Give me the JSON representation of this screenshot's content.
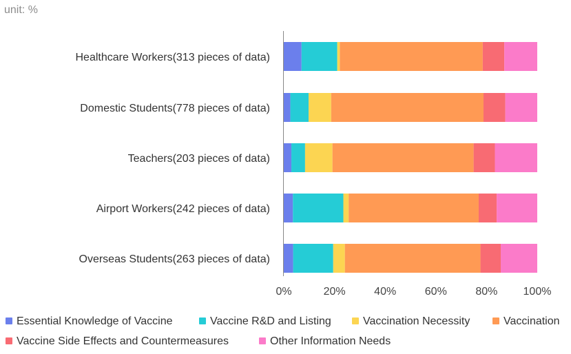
{
  "chart_data": {
    "type": "bar",
    "orientation": "horizontal",
    "stacked": true,
    "unit_label": "unit: %",
    "categories": [
      "Healthcare Workers(313 pieces of data)",
      "Domestic Students(778 pieces of data)",
      "Teachers(203 pieces of data)",
      "Airport Workers(242 pieces of data)",
      "Overseas Students(263 pieces of data)"
    ],
    "series": [
      {
        "name": "Essential Knowledge of Vaccine",
        "color": "#6b7fec",
        "values": [
          7.0,
          2.6,
          3.0,
          3.6,
          3.7
        ]
      },
      {
        "name": "Vaccine R&D and Listing",
        "color": "#25ccd6",
        "values": [
          14.1,
          7.2,
          5.4,
          19.9,
          15.8
        ]
      },
      {
        "name": "Vaccination Necessity",
        "color": "#fcd552",
        "values": [
          1.0,
          8.9,
          10.8,
          2.1,
          4.6
        ]
      },
      {
        "name": "Vaccination",
        "color": "#ff9a54",
        "values": [
          56.4,
          60.1,
          55.7,
          51.3,
          53.5
        ]
      },
      {
        "name": "Vaccine Side Effects and Countermeasures",
        "color": "#f86b73",
        "values": [
          8.5,
          8.6,
          8.4,
          7.1,
          8.0
        ]
      },
      {
        "name": "Other Information Needs",
        "color": "#fb7bc9",
        "values": [
          13.0,
          12.6,
          16.7,
          16.0,
          14.4
        ]
      }
    ],
    "x_ticks": [
      "0%",
      "20%",
      "40%",
      "60%",
      "80%",
      "100%"
    ],
    "xlim": [
      0,
      100
    ],
    "grid": false,
    "legend_position": "bottom-left"
  }
}
